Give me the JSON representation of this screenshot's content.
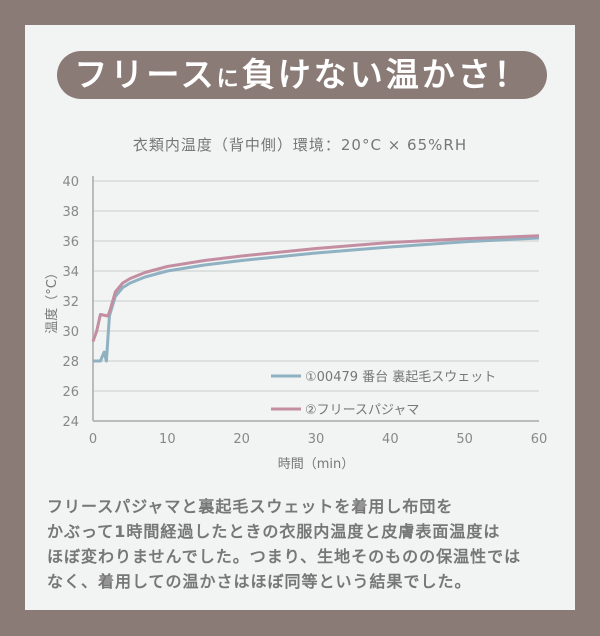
{
  "header": {
    "title_a": "フリース",
    "title_b": "に",
    "title_c": "負けない温かさ！"
  },
  "chart_data": {
    "type": "line",
    "title": "衣類内温度（背中側）環境：20°C × 65%RH",
    "xlabel": "時間（min）",
    "ylabel": "温度（°C）",
    "xlim": [
      0,
      60
    ],
    "ylim": [
      24,
      40
    ],
    "xticks": [
      0,
      10,
      20,
      30,
      40,
      50,
      60
    ],
    "yticks": [
      24,
      26,
      28,
      30,
      32,
      34,
      36,
      38,
      40
    ],
    "grid": true,
    "legend": "inside-bottom-right",
    "series": [
      {
        "name": "①00479 番台 裏起毛スウェット",
        "color": "#8fb1c1",
        "x": [
          0,
          1,
          1.5,
          1.8,
          2.2,
          3,
          4,
          5,
          7,
          10,
          15,
          20,
          30,
          40,
          50,
          60
        ],
        "y": [
          28,
          28,
          28.6,
          28,
          31,
          32.3,
          32.9,
          33.2,
          33.6,
          34,
          34.4,
          34.7,
          35.2,
          35.6,
          35.95,
          36.2
        ]
      },
      {
        "name": "②フリースパジャマ",
        "color": "#c48ea2",
        "x": [
          0,
          0.5,
          1,
          2,
          2.3,
          3,
          4,
          5,
          7,
          10,
          15,
          20,
          30,
          40,
          50,
          60
        ],
        "y": [
          29.3,
          30,
          31.1,
          31,
          31.4,
          32.6,
          33.2,
          33.5,
          33.9,
          34.3,
          34.7,
          35,
          35.5,
          35.9,
          36.15,
          36.35
        ]
      }
    ]
  },
  "caption": {
    "lines": [
      "フリースパジャマと裏起毛スウェットを着用し布団を",
      "かぶって1時間経過したときの衣服内温度と皮膚表面温度は",
      "ほぼ変わりませんでした。つまり、生地そのものの保温性では",
      "なく、着用しての温かさはほぼ同等という結果でした。"
    ]
  }
}
